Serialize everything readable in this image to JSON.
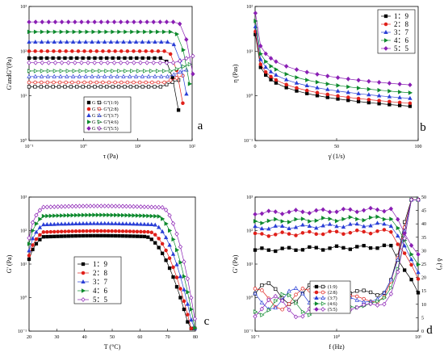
{
  "colors": {
    "1:9": "#000000",
    "2:8": "#e0201a",
    "3:7": "#2a3fd6",
    "4:6": "#0e8a2e",
    "5:5": "#8a1fb4"
  },
  "chart_data": [
    {
      "panel": "a",
      "type": "line",
      "xlabel": "τ (Pa)",
      "ylabel": "G'andG''(Pa)",
      "xscale": "log",
      "yscale": "log",
      "xlim": [
        0.1,
        100
      ],
      "ylim": [
        1,
        1000
      ],
      "xticks": [
        "10⁻¹",
        "10⁰",
        "10¹",
        "10²"
      ],
      "yticks": [
        "10⁰",
        "10¹",
        "10²",
        "10³"
      ],
      "legend_position": "lower-left",
      "legend": [
        {
          "text": "G '— G''(1:9)",
          "ratio": "1:9"
        },
        {
          "text": "G '— G''(2:8)",
          "ratio": "2:8"
        },
        {
          "text": "G '— G''(3:7)",
          "ratio": "3:7"
        },
        {
          "text": "G '— G''(4:6)",
          "ratio": "4:6"
        },
        {
          "text": "G '— G''(5:5)",
          "ratio": "5:5"
        }
      ],
      "series": [
        {
          "ratio": "1:9",
          "storage": 70,
          "loss": 16,
          "break": 50
        },
        {
          "ratio": "2:8",
          "storage": 100,
          "loss": 20,
          "break": 60
        },
        {
          "ratio": "3:7",
          "storage": 160,
          "loss": 27,
          "break": 70
        },
        {
          "ratio": "4:6",
          "storage": 270,
          "loss": 36,
          "break": 80
        },
        {
          "ratio": "5:5",
          "storage": 450,
          "loss": 55,
          "break": 92
        }
      ]
    },
    {
      "panel": "b",
      "type": "line",
      "xlabel": "γ̇ (1/s)",
      "ylabel": "η (Pas)",
      "xscale": "linear",
      "yscale": "log",
      "xlim": [
        0,
        100
      ],
      "ylim": [
        0.1,
        100
      ],
      "xticks": [
        "0",
        "50",
        "100"
      ],
      "yticks": [
        "10⁻¹",
        "10⁰",
        "10¹",
        "10²"
      ],
      "legend_position": "top-right",
      "legend": [
        {
          "text": "1：9",
          "ratio": "1:9"
        },
        {
          "text": "2：8",
          "ratio": "2:8"
        },
        {
          "text": "3：7",
          "ratio": "3:7"
        },
        {
          "text": "4：6",
          "ratio": "4:6"
        },
        {
          "text": "5：5",
          "ratio": "5:5"
        }
      ],
      "series": [
        {
          "ratio": "1:9",
          "k": 9.0,
          "n": 0.4
        },
        {
          "ratio": "2:8",
          "k": 10.5,
          "n": 0.4
        },
        {
          "ratio": "3:7",
          "k": 13.5,
          "n": 0.4
        },
        {
          "ratio": "4:6",
          "k": 18.0,
          "n": 0.4
        },
        {
          "ratio": "5:5",
          "k": 27.0,
          "n": 0.4
        }
      ]
    },
    {
      "panel": "c",
      "type": "line",
      "xlabel": "T (°C)",
      "ylabel": "G' (Pa)",
      "xscale": "linear",
      "yscale": "log",
      "xlim": [
        20,
        80
      ],
      "ylim": [
        0.1,
        1000
      ],
      "xticks": [
        "20",
        "30",
        "40",
        "50",
        "60",
        "70",
        "80"
      ],
      "yticks": [
        "10⁻¹",
        "10⁰",
        "10¹",
        "10²",
        "10³"
      ],
      "legend_position": "lower-left",
      "legend": [
        {
          "text": "1：9",
          "ratio": "1:9"
        },
        {
          "text": "2：8",
          "ratio": "2:8"
        },
        {
          "text": "3：7",
          "ratio": "3:7"
        },
        {
          "text": "4：6",
          "ratio": "4:6"
        },
        {
          "text": "5：5",
          "ratio": "5:5"
        }
      ],
      "series": [
        {
          "ratio": "1:9",
          "plateau": 65,
          "start": 14
        },
        {
          "ratio": "2:8",
          "plateau": 90,
          "start": 18
        },
        {
          "ratio": "3:7",
          "plateau": 150,
          "start": 25
        },
        {
          "ratio": "4:6",
          "plateau": 270,
          "start": 40
        },
        {
          "ratio": "5:5",
          "plateau": 500,
          "start": 60
        }
      ]
    },
    {
      "panel": "d",
      "type": "line",
      "xlabel": "f (Hz)",
      "ylabel": "G' (Pa)",
      "y2label": "δ (°)",
      "xscale": "log",
      "yscale": "log",
      "xlim": [
        0.1,
        10
      ],
      "ylim": [
        0.1,
        1000
      ],
      "y2lim": [
        0,
        50
      ],
      "xticks": [
        "10⁻¹",
        "10⁰",
        "10¹"
      ],
      "yticks": [
        "10⁻¹",
        "10⁰",
        "10¹",
        "10²",
        "10³"
      ],
      "y2ticks": [
        "0",
        "5",
        "10",
        "15",
        "20",
        "25",
        "30",
        "35",
        "40",
        "45",
        "50"
      ],
      "legend_position": "center",
      "legend": [
        {
          "text": "(1:9)",
          "ratio": "1:9"
        },
        {
          "text": "(2:8)",
          "ratio": "2:8"
        },
        {
          "text": "(3:7)",
          "ratio": "3:7"
        },
        {
          "text": "(4:6)",
          "ratio": "4:6"
        },
        {
          "text": "(5:5)",
          "ratio": "5:5"
        }
      ],
      "series": [
        {
          "ratio": "1:9",
          "storage": 35,
          "delta": 14
        },
        {
          "ratio": "2:8",
          "storage": 100,
          "delta": 12
        },
        {
          "ratio": "3:7",
          "storage": 160,
          "delta": 12
        },
        {
          "ratio": "4:6",
          "storage": 250,
          "delta": 10
        },
        {
          "ratio": "5:5",
          "storage": 450,
          "delta": 9
        }
      ]
    }
  ]
}
